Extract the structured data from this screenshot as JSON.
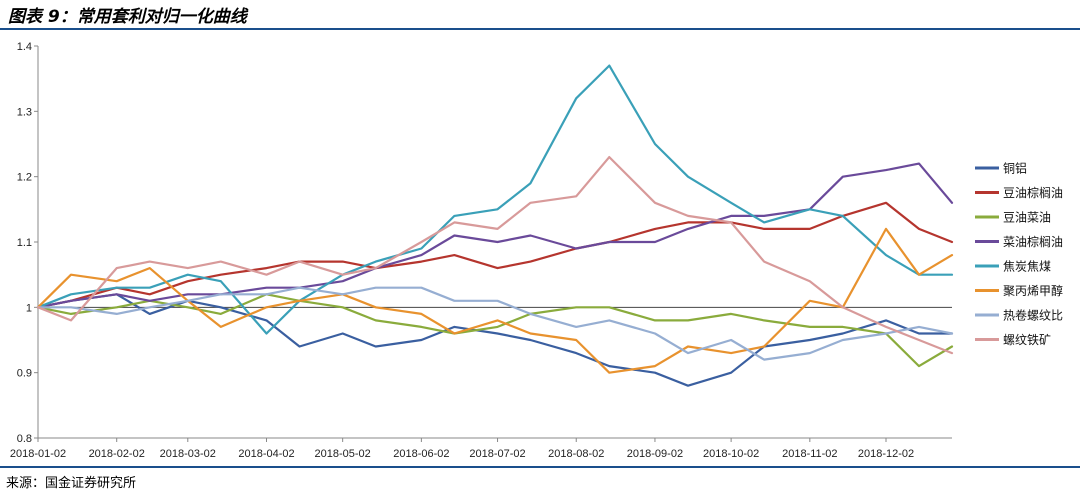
{
  "title": "图表 9：常用套利对归一化曲线",
  "source": "来源：国金证券研究所",
  "colors": {
    "rule": "#1a4f8c"
  },
  "chart_data": {
    "type": "line",
    "x": [
      "2018-01-02",
      "2018-01-15",
      "2018-02-02",
      "2018-02-15",
      "2018-03-02",
      "2018-03-15",
      "2018-04-02",
      "2018-04-15",
      "2018-05-02",
      "2018-05-15",
      "2018-06-02",
      "2018-06-15",
      "2018-07-02",
      "2018-07-15",
      "2018-08-02",
      "2018-08-15",
      "2018-09-02",
      "2018-09-15",
      "2018-10-02",
      "2018-10-15",
      "2018-11-02",
      "2018-11-15",
      "2018-12-02",
      "2018-12-15",
      "2018-12-28"
    ],
    "x_tick_labels": [
      "2018-01-02",
      "2018-02-02",
      "2018-03-02",
      "2018-04-02",
      "2018-05-02",
      "2018-06-02",
      "2018-07-02",
      "2018-08-02",
      "2018-09-02",
      "2018-10-02",
      "2018-11-02",
      "2018-12-02"
    ],
    "ylim": [
      0.8,
      1.4
    ],
    "y_ticks": [
      "0.8",
      "0.9",
      "1",
      "1.1",
      "1.2",
      "1.3",
      "1.4"
    ],
    "legend_position": "right",
    "grid": "horizontal-at-1",
    "series": [
      {
        "name": "铜铝",
        "color": "#3a5fa0",
        "values": [
          1.0,
          1.01,
          1.02,
          0.99,
          1.01,
          1.0,
          0.98,
          0.94,
          0.96,
          0.94,
          0.95,
          0.97,
          0.96,
          0.95,
          0.93,
          0.91,
          0.9,
          0.88,
          0.9,
          0.94,
          0.95,
          0.96,
          0.98,
          0.96,
          0.96
        ]
      },
      {
        "name": "豆油棕榈油",
        "color": "#b5352e",
        "values": [
          1.0,
          1.01,
          1.03,
          1.02,
          1.04,
          1.05,
          1.06,
          1.07,
          1.07,
          1.06,
          1.07,
          1.08,
          1.06,
          1.07,
          1.09,
          1.1,
          1.12,
          1.13,
          1.13,
          1.12,
          1.12,
          1.14,
          1.16,
          1.12,
          1.1
        ]
      },
      {
        "name": "豆油菜油",
        "color": "#8aab3c",
        "values": [
          1.0,
          0.99,
          1.0,
          1.01,
          1.0,
          0.99,
          1.02,
          1.01,
          1.0,
          0.98,
          0.97,
          0.96,
          0.97,
          0.99,
          1.0,
          1.0,
          0.98,
          0.98,
          0.99,
          0.98,
          0.97,
          0.97,
          0.96,
          0.91,
          0.94
        ]
      },
      {
        "name": "菜油棕榈油",
        "color": "#6a4a9a",
        "values": [
          1.0,
          1.01,
          1.02,
          1.01,
          1.02,
          1.02,
          1.03,
          1.03,
          1.04,
          1.06,
          1.08,
          1.11,
          1.1,
          1.11,
          1.09,
          1.1,
          1.1,
          1.12,
          1.14,
          1.14,
          1.15,
          1.2,
          1.21,
          1.22,
          1.16
        ]
      },
      {
        "name": "焦炭焦煤",
        "color": "#3aa0b8",
        "values": [
          1.0,
          1.02,
          1.03,
          1.03,
          1.05,
          1.04,
          0.96,
          1.01,
          1.05,
          1.07,
          1.09,
          1.14,
          1.15,
          1.19,
          1.32,
          1.37,
          1.25,
          1.2,
          1.16,
          1.13,
          1.15,
          1.14,
          1.08,
          1.05,
          1.05
        ]
      },
      {
        "name": "聚丙烯甲醇",
        "color": "#e8922e",
        "values": [
          1.0,
          1.05,
          1.04,
          1.06,
          1.01,
          0.97,
          1.0,
          1.01,
          1.02,
          1.0,
          0.99,
          0.96,
          0.98,
          0.96,
          0.95,
          0.9,
          0.91,
          0.94,
          0.93,
          0.94,
          1.01,
          1.0,
          1.12,
          1.05,
          1.08
        ]
      },
      {
        "name": "热卷螺纹比",
        "color": "#96aed2",
        "values": [
          1.0,
          1.0,
          0.99,
          1.0,
          1.01,
          1.02,
          1.02,
          1.03,
          1.02,
          1.03,
          1.03,
          1.01,
          1.01,
          0.99,
          0.97,
          0.98,
          0.96,
          0.93,
          0.95,
          0.92,
          0.93,
          0.95,
          0.96,
          0.97,
          0.96
        ]
      },
      {
        "name": "螺纹铁矿",
        "color": "#d89a9a",
        "values": [
          1.0,
          0.98,
          1.06,
          1.07,
          1.06,
          1.07,
          1.05,
          1.07,
          1.05,
          1.06,
          1.1,
          1.13,
          1.12,
          1.16,
          1.17,
          1.23,
          1.16,
          1.14,
          1.13,
          1.07,
          1.04,
          1.0,
          0.97,
          0.95,
          0.93
        ]
      }
    ]
  }
}
